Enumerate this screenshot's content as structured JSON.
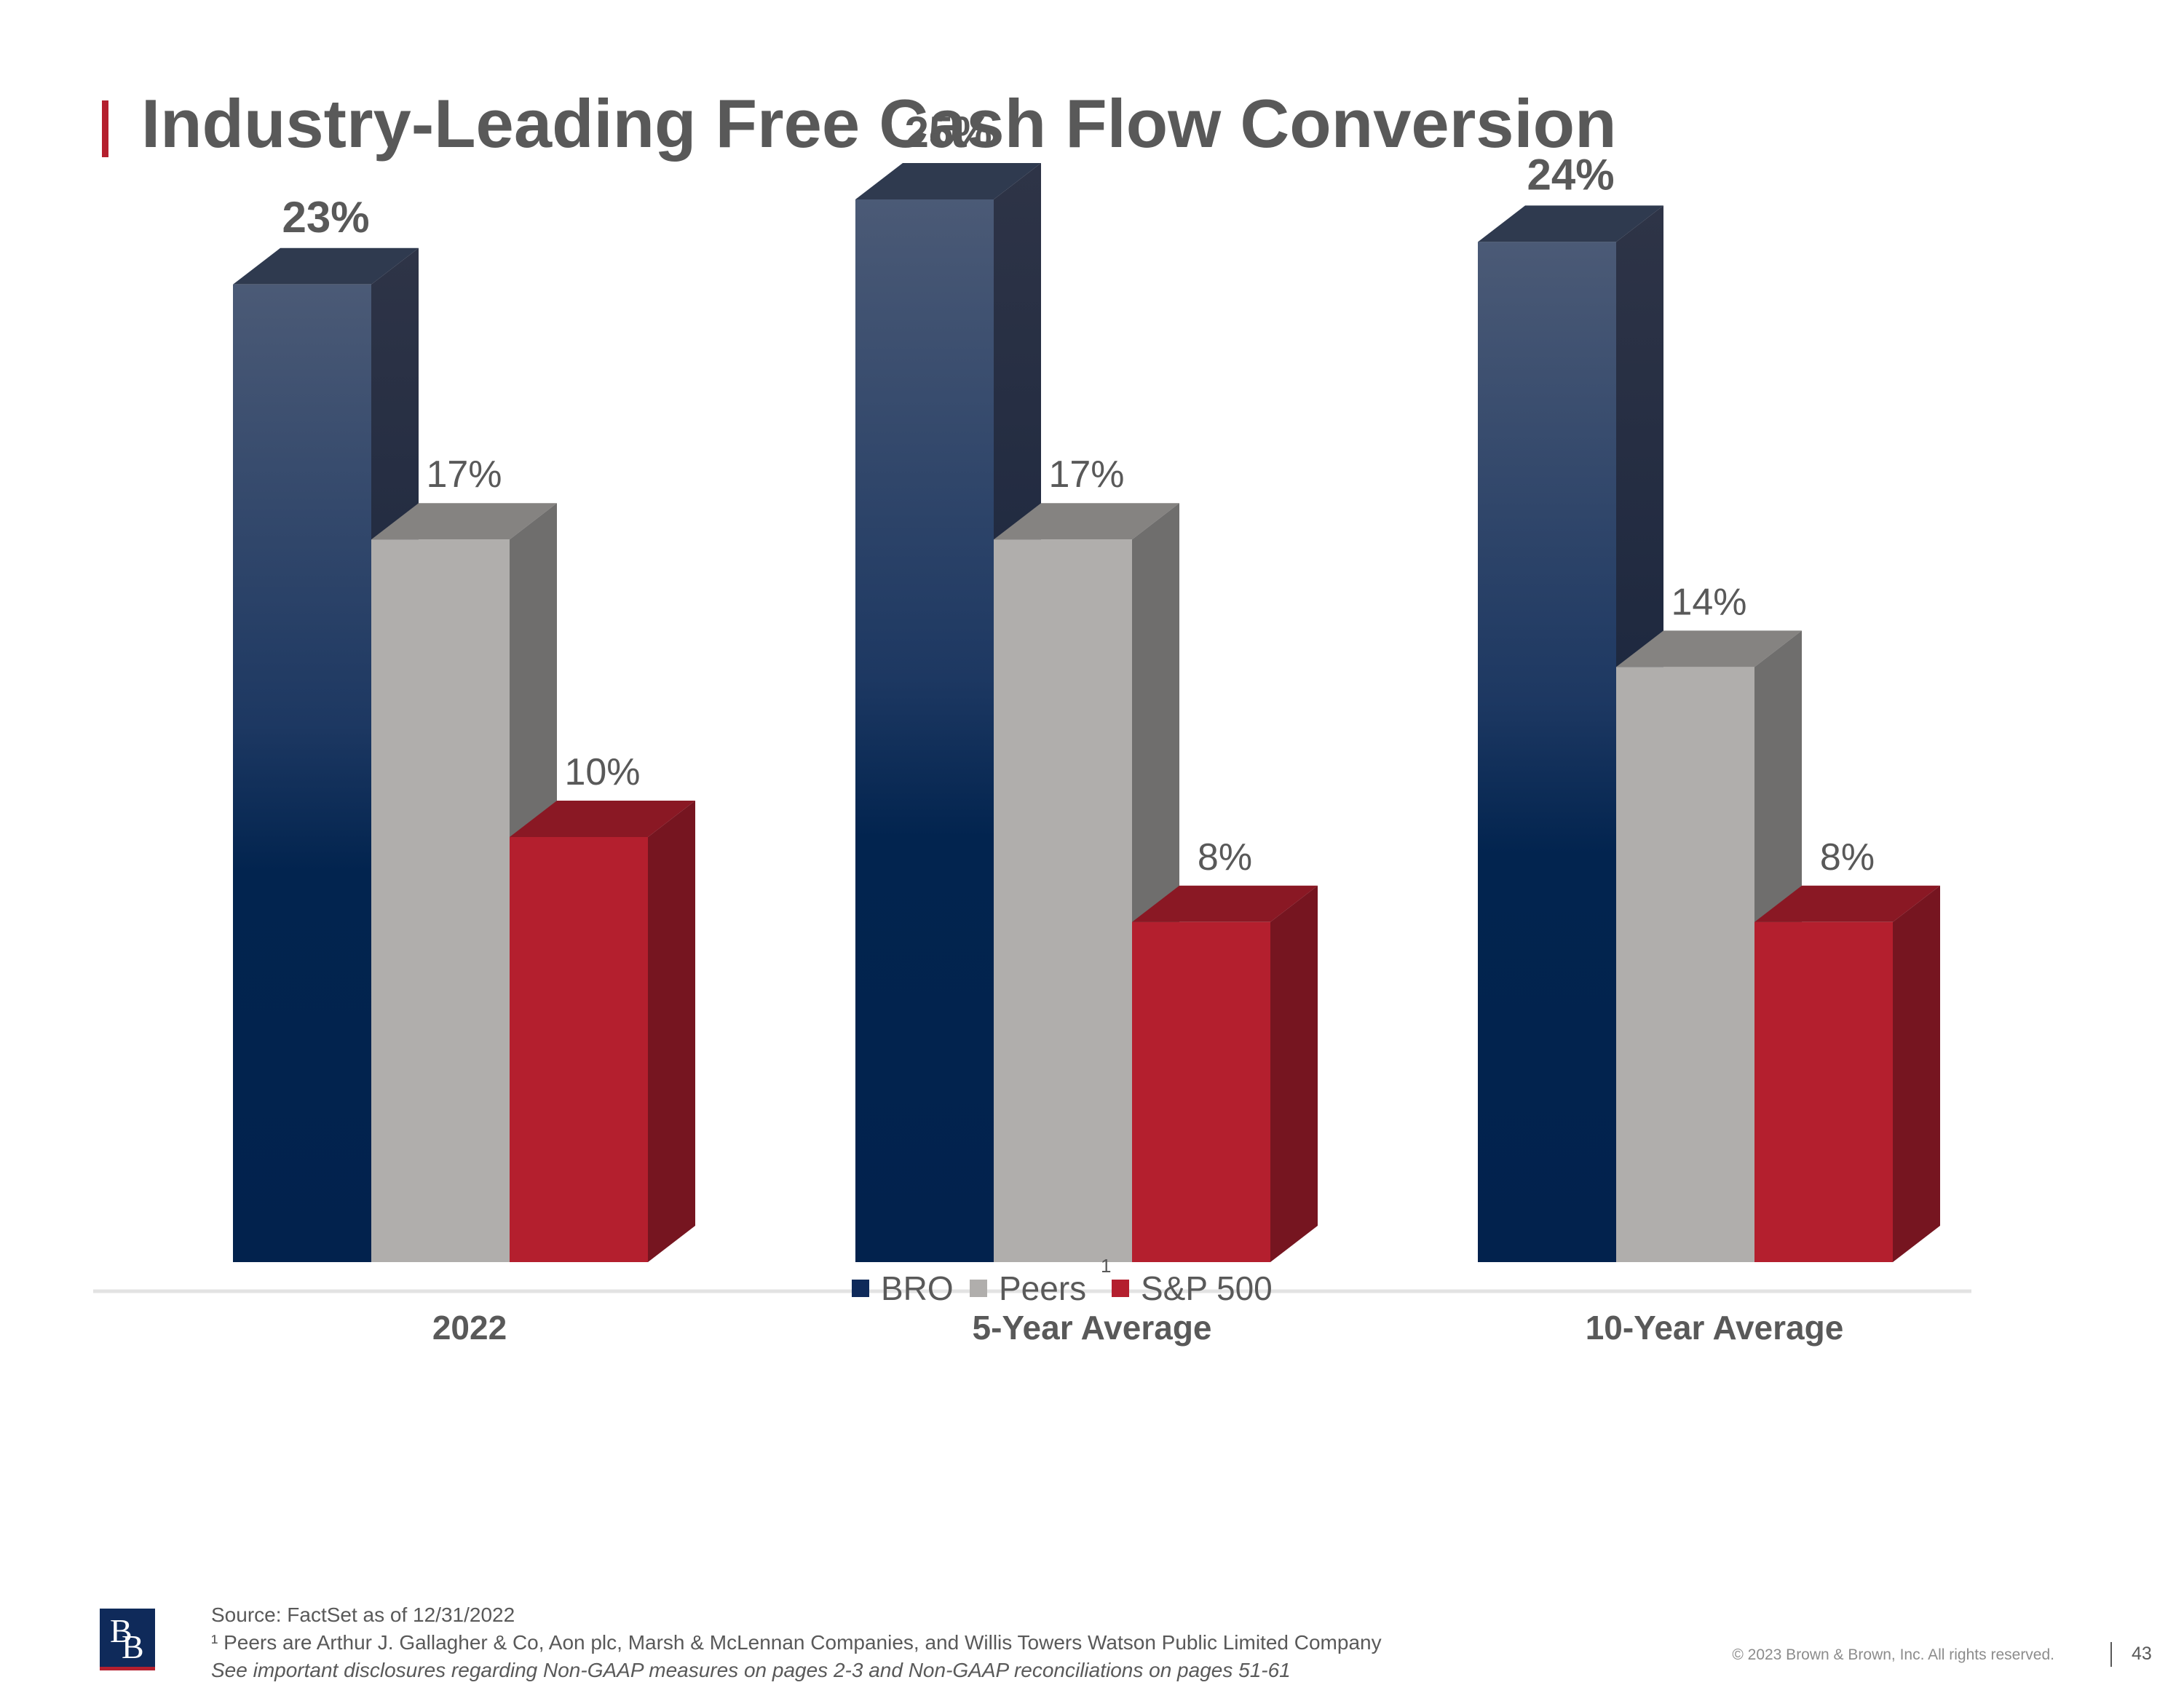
{
  "page": {
    "title": "Industry-Leading Free Cash Flow Conversion",
    "footer": {
      "source": "Source: FactSet as of 12/31/2022",
      "footnote": "¹ Peers are Arthur J. Gallagher & Co, Aon plc, Marsh & McLennan Companies, and Willis Towers Watson Public Limited Company",
      "disclosure": "See important disclosures regarding Non-GAAP measures on pages 2-3 and Non-GAAP reconciliations on pages 51-61",
      "copyright": "© 2023 Brown & Brown, Inc. All rights reserved.",
      "page_number": "43"
    },
    "logo_text": "BB"
  },
  "chart_data": {
    "type": "bar",
    "categories": [
      "2022",
      "5-Year Average",
      "10-Year Average"
    ],
    "series": [
      {
        "name": "BRO",
        "values": [
          23,
          25,
          24
        ],
        "labels": [
          "23%",
          "25%",
          "24%"
        ],
        "color": "#0f2a5a"
      },
      {
        "name": "Peers",
        "values": [
          17,
          17,
          14
        ],
        "labels": [
          "17%",
          "17%",
          "14%"
        ],
        "color": "#b0aeac"
      },
      {
        "name": "S&P 500",
        "values": [
          10,
          8,
          8
        ],
        "labels": [
          "10%",
          "8%",
          "8%"
        ],
        "color": "#b41f2e"
      }
    ],
    "legend_note": "1",
    "unit": "%",
    "style": "3d-column",
    "legend_position": "bottom-center",
    "grid": false
  }
}
